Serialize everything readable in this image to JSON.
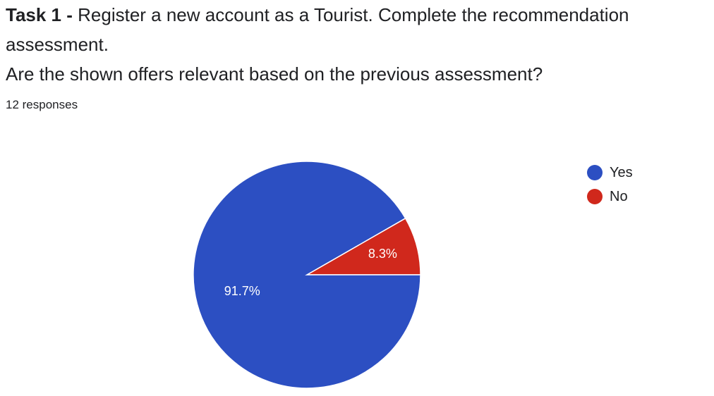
{
  "header": {
    "title_bold": "Task 1 -",
    "title_rest": " Register a new account as a Tourist. Complete the recommendation assessment.",
    "question": "Are the shown offers relevant based on the previous assessment?",
    "responses": "12 responses"
  },
  "chart_data": {
    "type": "pie",
    "categories": [
      "Yes",
      "No"
    ],
    "values": [
      91.7,
      8.3
    ],
    "labels": [
      "91.7%",
      "8.3%"
    ],
    "colors": [
      "#2c4fc2",
      "#d0281c"
    ],
    "legend_position": "top-right"
  },
  "legend": {
    "items": [
      {
        "label": "Yes",
        "color": "#2c4fc2"
      },
      {
        "label": "No",
        "color": "#d0281c"
      }
    ]
  }
}
